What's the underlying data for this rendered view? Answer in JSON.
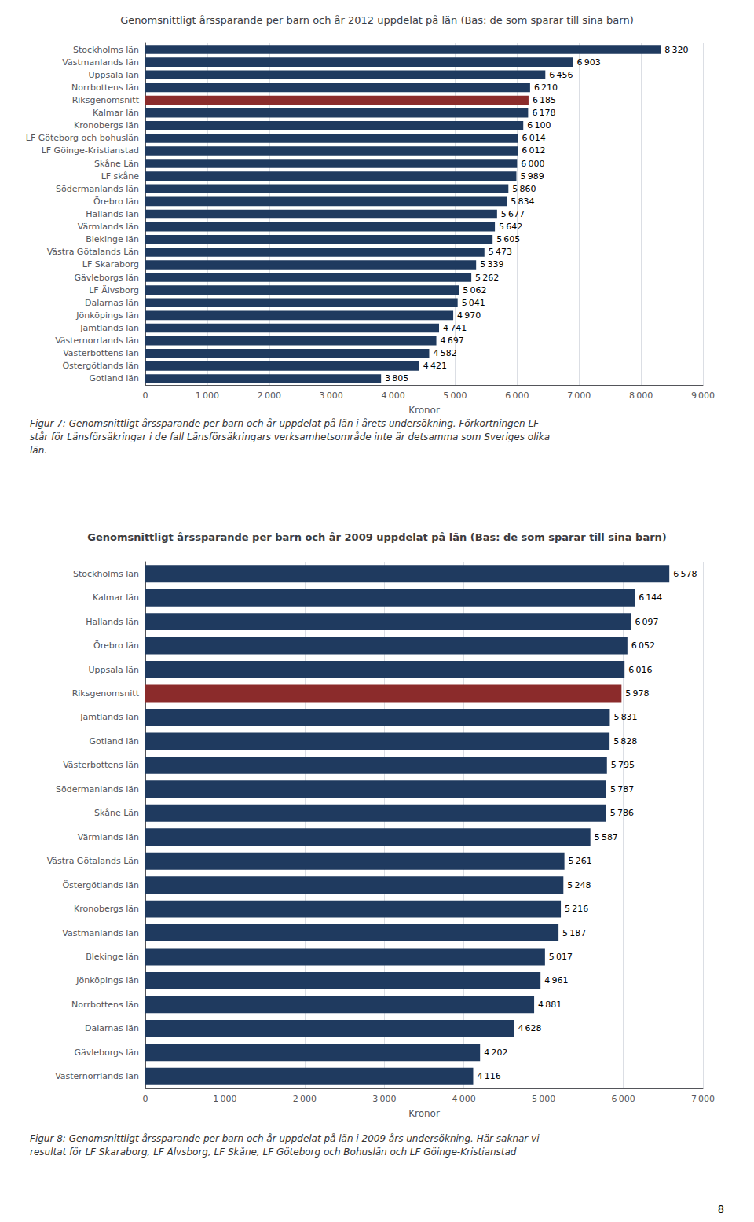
{
  "chart_data": [
    {
      "type": "bar",
      "orientation": "horizontal",
      "title": "Genomsnittligt årssparande per barn och år 2012 uppdelat på län (Bas: de som sparar till sina barn)",
      "xlabel": "Kronor",
      "categories": [
        "Stockholms län",
        "Västmanlands län",
        "Uppsala län",
        "Norrbottens län",
        "Riksgenomsnitt",
        "Kalmar län",
        "Kronobergs län",
        "LF Göteborg och bohuslän",
        "LF Göinge-Kristianstad",
        "Skåne Län",
        "LF skåne",
        "Södermanlands län",
        "Örebro län",
        "Hallands län",
        "Värmlands län",
        "Blekinge län",
        "Västra Götalands Län",
        "LF Skaraborg",
        "Gävleborgs län",
        "LF Älvsborg",
        "Dalarnas län",
        "Jönköpings län",
        "Jämtlands län",
        "Västernorrlands län",
        "Västerbottens län",
        "Östergötlands län",
        "Gotland län"
      ],
      "values": [
        8320,
        6903,
        6456,
        6210,
        6185,
        6178,
        6100,
        6014,
        6012,
        6000,
        5989,
        5860,
        5834,
        5677,
        5642,
        5605,
        5473,
        5339,
        5262,
        5062,
        5041,
        4970,
        4741,
        4697,
        4582,
        4421,
        3805
      ],
      "value_labels": [
        "8 320",
        "6 903",
        "6 456",
        "6 210",
        "6 185",
        "6 178",
        "6 100",
        "6 014",
        "6 012",
        "6 000",
        "5 989",
        "5 860",
        "5 834",
        "5 677",
        "5 642",
        "5 605",
        "5 473",
        "5 339",
        "5 262",
        "5 062",
        "5 041",
        "4 970",
        "4 741",
        "4 697",
        "4 582",
        "4 421",
        "3 805"
      ],
      "colors": [
        "#1f3a5f",
        "#1f3a5f",
        "#1f3a5f",
        "#1f3a5f",
        "#8b2b2b",
        "#1f3a5f",
        "#1f3a5f",
        "#1f3a5f",
        "#1f3a5f",
        "#1f3a5f",
        "#1f3a5f",
        "#1f3a5f",
        "#1f3a5f",
        "#1f3a5f",
        "#1f3a5f",
        "#1f3a5f",
        "#1f3a5f",
        "#1f3a5f",
        "#1f3a5f",
        "#1f3a5f",
        "#1f3a5f",
        "#1f3a5f",
        "#1f3a5f",
        "#1f3a5f",
        "#1f3a5f",
        "#1f3a5f",
        "#1f3a5f"
      ],
      "data_labels": true,
      "xlim": [
        0,
        9000
      ],
      "xticks": [
        0,
        {
          "value": 1000,
          "label": "1 000"
        },
        {
          "value": 2000,
          "label": "2 000"
        },
        {
          "value": 3000,
          "label": "3 000"
        },
        {
          "value": 4000,
          "label": "4 000"
        },
        {
          "value": 5000,
          "label": "5 000"
        },
        {
          "value": 6000,
          "label": "6 000"
        },
        {
          "value": 7000,
          "label": "7 000"
        },
        {
          "value": 8000,
          "label": "8 000"
        },
        {
          "value": 9000,
          "label": "9 000"
        }
      ],
      "grid": true,
      "annotations": [
        "Figur 7: Genomsnittligt årssparande per barn och år uppdelat på län i årets undersökning. Förkortningen LF",
        "står för Länsförsäkringar i de fall Länsförsäkringars verksamhetsområde inte är detsamma som Sveriges olika",
        "län."
      ]
    },
    {
      "type": "bar",
      "orientation": "horizontal",
      "title": "Genomsnittligt årssparande per barn och år 2009 uppdelat på län (Bas: de som sparar till sina barn)",
      "xlabel": "Kronor",
      "categories": [
        "Stockholms län",
        "Kalmar län",
        "Hallands län",
        "Örebro län",
        "Uppsala län",
        "Riksgenomsnitt",
        "Jämtlands län",
        "Gotland län",
        "Västerbottens län",
        "Södermanlands län",
        "Skåne Län",
        "Värmlands län",
        "Västra Götalands Län",
        "Östergötlands län",
        "Kronobergs län",
        "Västmanlands län",
        "Blekinge län",
        "Jönköpings län",
        "Norrbottens län",
        "Dalarnas län",
        "Gävleborgs län",
        "Västernorrlands län"
      ],
      "values": [
        6578,
        6144,
        6097,
        6052,
        6016,
        5978,
        5831,
        5828,
        5795,
        5787,
        5786,
        5587,
        5261,
        5248,
        5216,
        5187,
        5017,
        4961,
        4881,
        4628,
        4202,
        4116
      ],
      "value_labels": [
        "6 578",
        "6 144",
        "6 097",
        "6 052",
        "6 016",
        "5 978",
        "5 831",
        "5 828",
        "5 795",
        "5 787",
        "5 786",
        "5 587",
        "5 261",
        "5 248",
        "5 216",
        "5 187",
        "5 017",
        "4 961",
        "4 881",
        "4 628",
        "4 202",
        "4 116"
      ],
      "colors": [
        "#1f3a5f",
        "#1f3a5f",
        "#1f3a5f",
        "#1f3a5f",
        "#1f3a5f",
        "#8b2b2b",
        "#1f3a5f",
        "#1f3a5f",
        "#1f3a5f",
        "#1f3a5f",
        "#1f3a5f",
        "#1f3a5f",
        "#1f3a5f",
        "#1f3a5f",
        "#1f3a5f",
        "#1f3a5f",
        "#1f3a5f",
        "#1f3a5f",
        "#1f3a5f",
        "#1f3a5f",
        "#1f3a5f",
        "#1f3a5f"
      ],
      "data_labels": true,
      "xlim": [
        0,
        7000
      ],
      "xticks": [
        0,
        {
          "value": 1000,
          "label": "1 000"
        },
        {
          "value": 2000,
          "label": "2 000"
        },
        {
          "value": 3000,
          "label": "3 000"
        },
        {
          "value": 4000,
          "label": "4 000"
        },
        {
          "value": 5000,
          "label": "5 000"
        },
        {
          "value": 6000,
          "label": "6 000"
        },
        {
          "value": 7000,
          "label": "7 000"
        }
      ],
      "grid": true,
      "annotations": [
        "Figur 8: Genomsnittligt årssparande per barn och år uppdelat på län i 2009 års undersökning. Här saknar vi",
        "resultat för LF Skaraborg, LF Älvsborg, LF Skåne, LF Göteborg och Bohuslän och LF Göinge-Kristianstad"
      ]
    }
  ],
  "annotations": [
    "8"
  ]
}
